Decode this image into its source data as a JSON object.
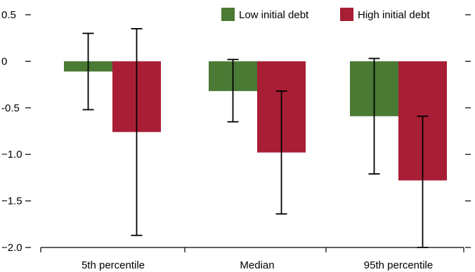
{
  "chart_data": {
    "type": "bar",
    "title": "",
    "xlabel": "",
    "ylabel": "",
    "categories": [
      "5th percentile",
      "Median",
      "95th percentile"
    ],
    "series": [
      {
        "name": "Low initial debt",
        "color": "#4a7a34",
        "values": [
          -0.11,
          -0.32,
          -0.59
        ],
        "error_low": [
          -0.52,
          -0.65,
          -1.21
        ],
        "error_high": [
          0.3,
          0.02,
          0.03
        ]
      },
      {
        "name": "High initial debt",
        "color": "#a81e35",
        "values": [
          -0.76,
          -0.98,
          -1.28
        ],
        "error_low": [
          -1.87,
          -1.64,
          -2.0
        ],
        "error_high": [
          0.35,
          -0.32,
          -0.59
        ]
      }
    ],
    "ylim": [
      -2.0,
      0.5
    ],
    "yticks": [
      {
        "value": 0.5,
        "label": "0.5"
      },
      {
        "value": 0,
        "label": "0"
      },
      {
        "value": -0.5,
        "label": "-0.5"
      },
      {
        "value": -1.0,
        "label": "−1.0"
      },
      {
        "value": -1.5,
        "label": "−1.5"
      },
      {
        "value": -2.0,
        "label": "−2.0"
      }
    ],
    "legend_position": "top-right",
    "grid": false
  }
}
